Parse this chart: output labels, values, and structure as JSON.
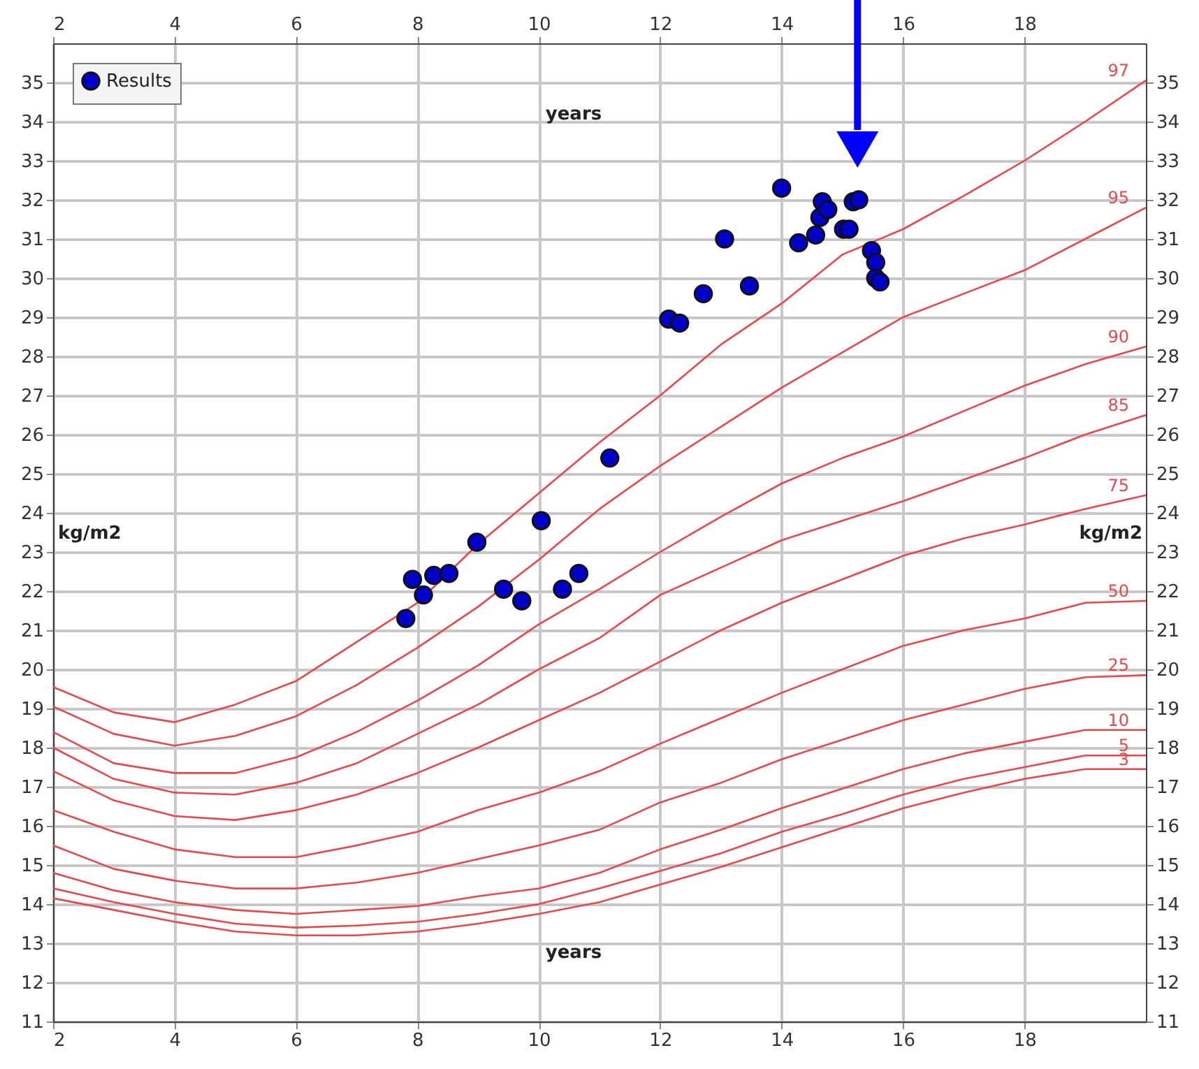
{
  "chart_data": {
    "type": "line",
    "ylabel": "kg/m2",
    "y2label": "kg/m2",
    "xlabel": "years",
    "x2label": "years",
    "xlim": [
      2,
      20
    ],
    "xticks": [
      2,
      4,
      6,
      8,
      10,
      12,
      14,
      16,
      18
    ],
    "x2lim": [
      2,
      20
    ],
    "x2ticks": [
      2,
      4,
      6,
      8,
      10,
      12,
      14,
      16,
      18
    ],
    "ylim": [
      11,
      36
    ],
    "yticks": [
      11,
      12,
      13,
      14,
      15,
      16,
      17,
      18,
      19,
      20,
      21,
      22,
      23,
      24,
      25,
      26,
      27,
      28,
      29,
      30,
      31,
      32,
      33,
      34,
      35
    ],
    "y2lim": [
      11,
      36
    ],
    "y2ticks": [
      11,
      12,
      13,
      14,
      15,
      16,
      17,
      18,
      19,
      20,
      21,
      22,
      23,
      24,
      25,
      26,
      27,
      28,
      29,
      30,
      31,
      32,
      33,
      34,
      35
    ],
    "grid": true,
    "legend": "top left",
    "line_style": "solid",
    "x": [
      2,
      3,
      4,
      5,
      6,
      7,
      8,
      9,
      10,
      11,
      12,
      13,
      14,
      15,
      16,
      17,
      18,
      19,
      20
    ],
    "series": [
      {
        "name": "97",
        "color": "#e8474b",
        "values": [
          19.55,
          18.9,
          18.65,
          19.1,
          19.7,
          20.7,
          21.7,
          23.2,
          24.5,
          25.8,
          27.0,
          28.3,
          29.35,
          30.6,
          31.25,
          32.1,
          33.0,
          34.0,
          35.05
        ]
      },
      {
        "name": "95",
        "color": "#e8474b",
        "values": [
          19.05,
          18.35,
          18.05,
          18.3,
          18.8,
          19.6,
          20.55,
          21.6,
          22.8,
          24.1,
          25.2,
          26.2,
          27.2,
          28.1,
          29.0,
          29.6,
          30.2,
          31.0,
          31.8
        ]
      },
      {
        "name": "90",
        "color": "#e8474b",
        "values": [
          18.4,
          17.6,
          17.35,
          17.35,
          17.75,
          18.4,
          19.2,
          20.1,
          21.15,
          22.05,
          23.0,
          23.9,
          24.75,
          25.4,
          25.95,
          26.6,
          27.25,
          27.8,
          28.25
        ]
      },
      {
        "name": "85",
        "color": "#e8474b",
        "values": [
          18.0,
          17.2,
          16.85,
          16.8,
          17.1,
          17.6,
          18.35,
          19.1,
          20.0,
          20.8,
          21.9,
          22.6,
          23.3,
          23.8,
          24.3,
          24.85,
          25.4,
          26.0,
          26.5
        ]
      },
      {
        "name": "75",
        "color": "#e8474b",
        "values": [
          17.4,
          16.65,
          16.25,
          16.15,
          16.4,
          16.8,
          17.35,
          18.0,
          18.7,
          19.4,
          20.2,
          21.0,
          21.7,
          22.3,
          22.9,
          23.35,
          23.7,
          24.1,
          24.45
        ]
      },
      {
        "name": "50",
        "color": "#e8474b",
        "values": [
          16.4,
          15.85,
          15.4,
          15.2,
          15.2,
          15.5,
          15.85,
          16.4,
          16.85,
          17.4,
          18.1,
          18.75,
          19.4,
          20.0,
          20.6,
          21.0,
          21.3,
          21.7,
          21.75
        ]
      },
      {
        "name": "25",
        "color": "#e8474b",
        "values": [
          15.5,
          14.9,
          14.6,
          14.4,
          14.4,
          14.55,
          14.8,
          15.15,
          15.5,
          15.9,
          16.6,
          17.1,
          17.7,
          18.2,
          18.7,
          19.1,
          19.5,
          19.8,
          19.85
        ]
      },
      {
        "name": "10",
        "color": "#e8474b",
        "values": [
          14.8,
          14.35,
          14.05,
          13.85,
          13.75,
          13.85,
          13.95,
          14.2,
          14.4,
          14.8,
          15.4,
          15.9,
          16.45,
          16.95,
          17.45,
          17.85,
          18.15,
          18.45,
          18.45
        ]
      },
      {
        "name": "5",
        "color": "#e8474b",
        "values": [
          14.4,
          14.05,
          13.75,
          13.5,
          13.4,
          13.45,
          13.55,
          13.75,
          14.0,
          14.4,
          14.85,
          15.3,
          15.85,
          16.3,
          16.8,
          17.2,
          17.5,
          17.8,
          17.8
        ]
      },
      {
        "name": "3",
        "color": "#e8474b",
        "values": [
          14.15,
          13.85,
          13.55,
          13.3,
          13.2,
          13.2,
          13.3,
          13.5,
          13.75,
          14.05,
          14.5,
          14.95,
          15.45,
          15.95,
          16.45,
          16.85,
          17.2,
          17.45,
          17.45
        ]
      },
      {
        "name": "Results",
        "type": "scatter",
        "marker": "circle",
        "color": "#0000c8",
        "x": [
          7.81,
          7.92,
          8.1,
          8.27,
          8.52,
          8.98,
          9.42,
          9.72,
          10.04,
          10.39,
          10.66,
          11.17,
          12.14,
          12.32,
          12.71,
          13.06,
          13.47,
          14.0,
          14.28,
          14.56,
          14.63,
          14.67,
          14.76,
          15.02,
          15.11,
          15.18,
          15.27,
          15.48,
          15.55,
          15.55,
          15.62
        ],
        "values": [
          21.3,
          22.3,
          21.9,
          22.4,
          22.45,
          23.25,
          22.05,
          21.75,
          23.8,
          22.05,
          22.45,
          25.4,
          28.95,
          28.85,
          29.6,
          31.0,
          29.8,
          32.3,
          30.9,
          31.1,
          31.55,
          31.95,
          31.75,
          31.25,
          31.25,
          31.95,
          32.0,
          30.7,
          30.4,
          30.0,
          29.9
        ]
      }
    ]
  }
}
